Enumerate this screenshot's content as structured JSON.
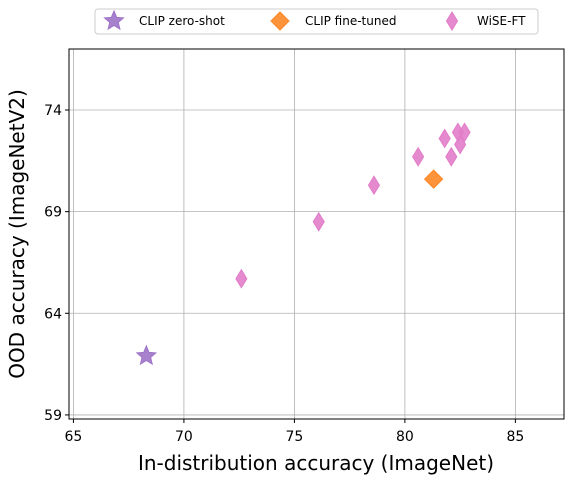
{
  "chart_data": {
    "type": "scatter",
    "xlabel": "In-distribution accuracy (ImageNet)",
    "ylabel": "OOD accuracy (ImageNetV2)",
    "xlim": [
      64.8,
      87.2
    ],
    "ylim": [
      58.8,
      77.0
    ],
    "xticks": [
      65,
      70,
      75,
      80,
      85
    ],
    "yticks": [
      59,
      64,
      69,
      74
    ],
    "grid": true,
    "legend_position": "top-center",
    "series": [
      {
        "name": "CLIP zero-shot",
        "marker": "star",
        "color": "#9e73c7",
        "points": [
          {
            "x": 68.3,
            "y": 61.9
          }
        ]
      },
      {
        "name": "CLIP fine-tuned",
        "marker": "diamond",
        "color": "#fd8725",
        "points": [
          {
            "x": 81.3,
            "y": 70.6
          }
        ]
      },
      {
        "name": "WiSE-FT",
        "marker": "thin_diamond",
        "color": "#e27dc9",
        "points": [
          {
            "x": 72.6,
            "y": 65.7
          },
          {
            "x": 76.1,
            "y": 68.5
          },
          {
            "x": 78.6,
            "y": 70.3
          },
          {
            "x": 80.6,
            "y": 71.7
          },
          {
            "x": 81.8,
            "y": 72.6
          },
          {
            "x": 82.1,
            "y": 71.7
          },
          {
            "x": 82.4,
            "y": 72.9
          },
          {
            "x": 82.5,
            "y": 72.3
          },
          {
            "x": 82.7,
            "y": 72.9
          }
        ]
      }
    ]
  }
}
